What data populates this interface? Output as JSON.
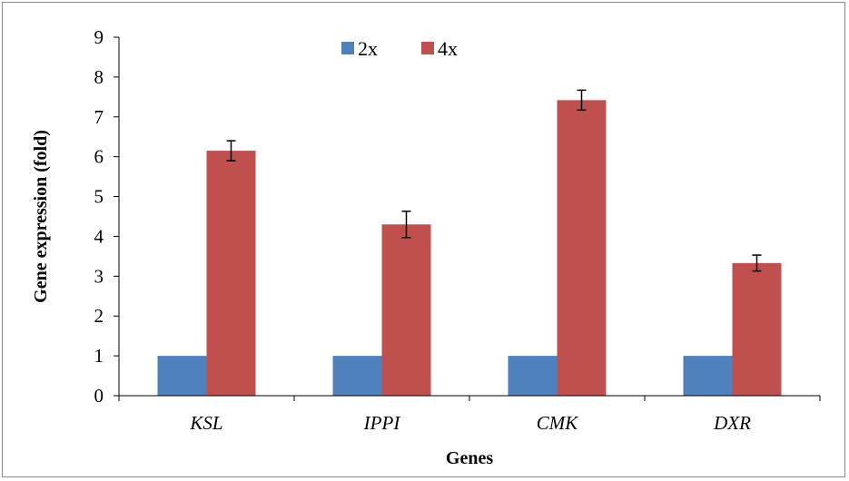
{
  "chart_data": {
    "type": "bar",
    "categories": [
      "KSL",
      "IPPI",
      "CMK",
      "DXR"
    ],
    "series": [
      {
        "name": "2x",
        "color": "#4f81bd",
        "values": [
          1,
          1,
          1,
          1
        ]
      },
      {
        "name": "4x",
        "color": "#c0504d",
        "values": [
          6.15,
          4.3,
          7.42,
          3.33
        ],
        "error": [
          0.25,
          0.33,
          0.25,
          0.2
        ]
      }
    ],
    "title": "",
    "xlabel": "Genes",
    "ylabel": "Gene  expression (fold)",
    "ylim": [
      0,
      9
    ],
    "yticks": [
      0,
      1,
      2,
      3,
      4,
      5,
      6,
      7,
      8,
      9
    ],
    "grid": false,
    "legend_position": "top-center"
  }
}
